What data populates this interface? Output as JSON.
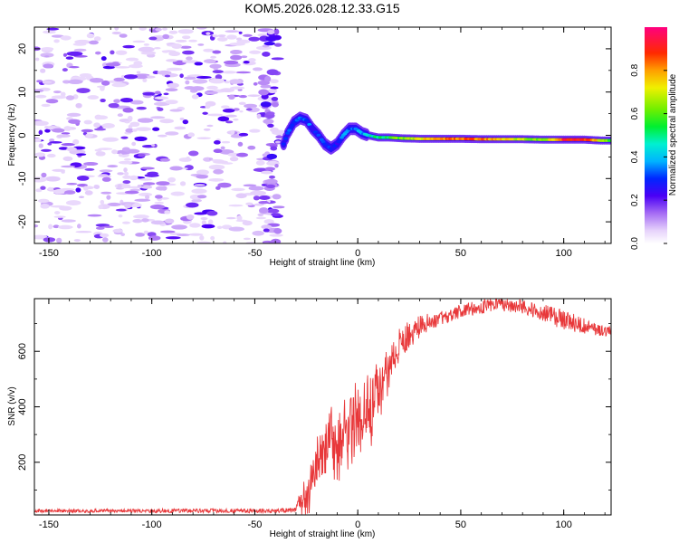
{
  "title": "KOM5.2026.028.12.33.G15",
  "chart_data": [
    {
      "type": "heatmap",
      "name": "spectrogram",
      "xlabel": "Height of straight line (km)",
      "ylabel": "Frequency (Hz)",
      "xlim": [
        -157,
        123
      ],
      "ylim": [
        -25,
        25
      ],
      "xticks": [
        -150,
        -100,
        -50,
        0,
        50,
        100
      ],
      "yticks": [
        -20,
        -10,
        0,
        10,
        20
      ],
      "xtick_labels": [
        "-150",
        "-100",
        "-50",
        "0",
        "50",
        "100"
      ],
      "ytick_labels": [
        "-20",
        "-10",
        "0",
        "10",
        "20"
      ],
      "colorbar": {
        "label": "Normalized spectral amplitude",
        "range": [
          0,
          1
        ],
        "ticks": [
          0.0,
          0.2,
          0.4,
          0.6,
          0.8
        ],
        "tick_labels": [
          "0.0",
          "0.2",
          "0.4",
          "0.6",
          "0.8"
        ]
      },
      "ridge": [
        {
          "x": -36,
          "f": -2,
          "a": 0.28
        },
        {
          "x": -34,
          "f": 0.5,
          "a": 0.3
        },
        {
          "x": -31,
          "f": 3,
          "a": 0.33
        },
        {
          "x": -28,
          "f": 4,
          "a": 0.35
        },
        {
          "x": -25,
          "f": 3.5,
          "a": 0.34
        },
        {
          "x": -22,
          "f": 1.5,
          "a": 0.3
        },
        {
          "x": -19,
          "f": 0,
          "a": 0.28
        },
        {
          "x": -16,
          "f": -2,
          "a": 0.27
        },
        {
          "x": -13,
          "f": -3,
          "a": 0.26
        },
        {
          "x": -10,
          "f": -2,
          "a": 0.28
        },
        {
          "x": -7,
          "f": 0,
          "a": 0.32
        },
        {
          "x": -4,
          "f": 1.5,
          "a": 0.34
        },
        {
          "x": -1,
          "f": 1.5,
          "a": 0.36
        },
        {
          "x": 2,
          "f": 0.5,
          "a": 0.38
        },
        {
          "x": 5,
          "f": 0,
          "a": 0.42
        },
        {
          "x": 10,
          "f": -0.5,
          "a": 0.5
        },
        {
          "x": 15,
          "f": -0.5,
          "a": 0.55
        },
        {
          "x": 22,
          "f": -0.7,
          "a": 0.62
        },
        {
          "x": 30,
          "f": -0.8,
          "a": 0.72
        },
        {
          "x": 40,
          "f": -0.8,
          "a": 0.8
        },
        {
          "x": 50,
          "f": -0.8,
          "a": 0.85
        },
        {
          "x": 60,
          "f": -0.9,
          "a": 0.82
        },
        {
          "x": 70,
          "f": -0.9,
          "a": 0.78
        },
        {
          "x": 80,
          "f": -0.9,
          "a": 0.68
        },
        {
          "x": 90,
          "f": -1,
          "a": 0.62
        },
        {
          "x": 100,
          "f": -1,
          "a": 0.88
        },
        {
          "x": 110,
          "f": -1,
          "a": 0.92
        },
        {
          "x": 118,
          "f": -1.2,
          "a": 0.7
        },
        {
          "x": 123,
          "f": -1.2,
          "a": 0.55
        }
      ],
      "noise_region_x": [
        -157,
        -38
      ],
      "noise_amplitude": "0.0-0.2"
    },
    {
      "type": "line",
      "name": "snr",
      "xlabel": "Height of straight line (km)",
      "ylabel": "SNR (v/v)",
      "xlim": [
        -157,
        123
      ],
      "ylim": [
        10,
        790
      ],
      "xticks": [
        -150,
        -100,
        -50,
        0,
        50,
        100
      ],
      "yticks": [
        200,
        400,
        600
      ],
      "xtick_labels": [
        "-150",
        "-100",
        "-50",
        "0",
        "50",
        "100"
      ],
      "ytick_labels": [
        "200",
        "400",
        "600"
      ],
      "color": "#e8383a",
      "envelope": [
        {
          "x": -157,
          "y": 25
        },
        {
          "x": -100,
          "y": 25
        },
        {
          "x": -40,
          "y": 25
        },
        {
          "x": -30,
          "y": 30
        },
        {
          "x": -27,
          "y": 80
        },
        {
          "x": -24,
          "y": 180
        },
        {
          "x": -20,
          "y": 270
        },
        {
          "x": -15,
          "y": 340
        },
        {
          "x": -10,
          "y": 390
        },
        {
          "x": -5,
          "y": 420
        },
        {
          "x": 0,
          "y": 460
        },
        {
          "x": 5,
          "y": 500
        },
        {
          "x": 10,
          "y": 560
        },
        {
          "x": 15,
          "y": 600
        },
        {
          "x": 20,
          "y": 630
        },
        {
          "x": 25,
          "y": 660
        },
        {
          "x": 30,
          "y": 690
        },
        {
          "x": 40,
          "y": 720
        },
        {
          "x": 50,
          "y": 745
        },
        {
          "x": 60,
          "y": 760
        },
        {
          "x": 70,
          "y": 770
        },
        {
          "x": 80,
          "y": 760
        },
        {
          "x": 90,
          "y": 740
        },
        {
          "x": 100,
          "y": 715
        },
        {
          "x": 110,
          "y": 690
        },
        {
          "x": 123,
          "y": 670
        }
      ],
      "noise_amplitude": [
        {
          "x": -157,
          "y": 6
        },
        {
          "x": -30,
          "y": 8
        },
        {
          "x": -25,
          "y": 90
        },
        {
          "x": -10,
          "y": 150
        },
        {
          "x": 10,
          "y": 150
        },
        {
          "x": 20,
          "y": 60
        },
        {
          "x": 40,
          "y": 25
        },
        {
          "x": 80,
          "y": 25
        },
        {
          "x": 100,
          "y": 35
        },
        {
          "x": 123,
          "y": 20
        }
      ]
    }
  ]
}
